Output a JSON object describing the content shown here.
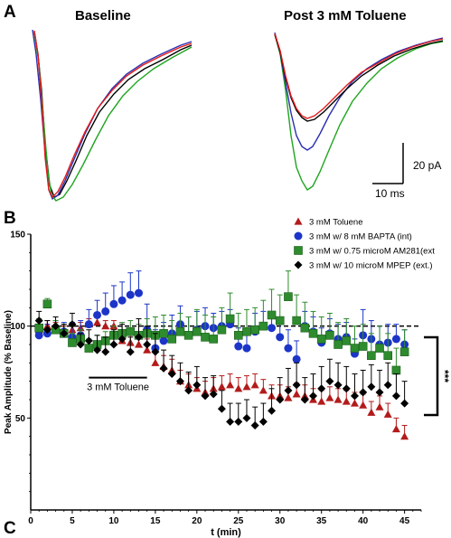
{
  "panels": {
    "a": "A",
    "b": "B",
    "c": "C"
  },
  "traces_panel": {
    "baseline_title": "Baseline",
    "post_title": "Post 3 mM Toluene",
    "scale_amp": "20 pA",
    "scale_time": "10 ms",
    "trace_colors": {
      "red": "#e31a1c",
      "blue": "#2b2fb0",
      "green": "#1fa51f",
      "black": "#000000"
    }
  },
  "significance": "***",
  "chart_data": {
    "type": "scatter",
    "title": "",
    "xlabel": "t (min)",
    "ylabel": "Peak Amplitude (% Baseline)",
    "xlim": [
      0,
      47
    ],
    "ylim": [
      0,
      150
    ],
    "xticks": [
      0,
      5,
      10,
      15,
      20,
      25,
      30,
      35,
      40,
      45
    ],
    "yticks": [
      50,
      100,
      150
    ],
    "reference_line": 100,
    "annotation": {
      "label": "3 mM Toluene",
      "x_start": 7,
      "x_end": 14
    },
    "legend_position": "top-right",
    "grid": false,
    "series": [
      {
        "name": "3 mM Toluene",
        "marker": "triangle",
        "color": "#b31b1b",
        "x": [
          1,
          2,
          3,
          4,
          5,
          6,
          7,
          8,
          9,
          10,
          11,
          12,
          13,
          14,
          15,
          16,
          17,
          18,
          19,
          20,
          21,
          22,
          23,
          24,
          25,
          26,
          27,
          28,
          29,
          30,
          31,
          32,
          33,
          34,
          35,
          36,
          37,
          38,
          39,
          40,
          41,
          42,
          43,
          44,
          45
        ],
        "y": [
          98,
          100,
          99,
          97,
          98,
          99,
          101,
          102,
          100,
          100,
          92,
          91,
          90,
          87,
          80,
          78,
          76,
          70,
          68,
          66,
          64,
          66,
          67,
          68,
          66,
          67,
          68,
          65,
          62,
          62,
          61,
          63,
          62,
          60,
          59,
          61,
          60,
          59,
          58,
          57,
          53,
          56,
          52,
          44,
          40
        ],
        "err": [
          3,
          3,
          3,
          3,
          3,
          3,
          3,
          3,
          3,
          3,
          6,
          6,
          6,
          6,
          6,
          6,
          6,
          6,
          6,
          6,
          6,
          6,
          6,
          6,
          6,
          6,
          6,
          6,
          6,
          6,
          6,
          6,
          6,
          6,
          6,
          6,
          6,
          6,
          6,
          6,
          6,
          6,
          6,
          6,
          6
        ]
      },
      {
        "name": "3 mM w/ 8 mM BAPTA (int)",
        "marker": "circle",
        "color": "#1c35c8",
        "x": [
          1,
          2,
          3,
          4,
          5,
          6,
          7,
          8,
          9,
          10,
          11,
          12,
          13,
          14,
          15,
          16,
          17,
          18,
          19,
          20,
          21,
          22,
          23,
          24,
          25,
          26,
          27,
          28,
          29,
          30,
          31,
          32,
          33,
          34,
          35,
          36,
          37,
          38,
          39,
          40,
          41,
          42,
          43,
          44,
          45
        ],
        "y": [
          95,
          96,
          98,
          97,
          94,
          95,
          101,
          106,
          108,
          112,
          114,
          117,
          118,
          98,
          88,
          92,
          96,
          101,
          95,
          98,
          100,
          99,
          100,
          101,
          89,
          88,
          97,
          100,
          99,
          94,
          88,
          82,
          100,
          97,
          91,
          96,
          93,
          94,
          85,
          95,
          93,
          90,
          91,
          93,
          90
        ],
        "err": [
          5,
          5,
          5,
          5,
          8,
          8,
          8,
          8,
          10,
          10,
          10,
          12,
          12,
          14,
          10,
          10,
          10,
          10,
          10,
          10,
          10,
          8,
          8,
          8,
          10,
          10,
          10,
          8,
          8,
          10,
          10,
          10,
          8,
          8,
          8,
          8,
          8,
          8,
          8,
          14,
          10,
          10,
          10,
          8,
          8
        ]
      },
      {
        "name": "3 mM w/ 0.75 microM AM281(ext",
        "marker": "square",
        "color": "#2e8b2e",
        "x": [
          1,
          2,
          3,
          4,
          5,
          6,
          7,
          8,
          9,
          10,
          11,
          12,
          13,
          14,
          15,
          16,
          17,
          18,
          19,
          20,
          21,
          22,
          23,
          24,
          25,
          26,
          27,
          28,
          29,
          30,
          31,
          32,
          33,
          34,
          35,
          36,
          37,
          38,
          39,
          40,
          41,
          42,
          43,
          44,
          45
        ],
        "y": [
          99,
          112,
          98,
          96,
          91,
          93,
          88,
          90,
          92,
          95,
          96,
          97,
          95,
          96,
          95,
          96,
          93,
          97,
          95,
          97,
          94,
          93,
          98,
          104,
          95,
          97,
          98,
          100,
          106,
          103,
          116,
          103,
          99,
          96,
          93,
          95,
          90,
          92,
          88,
          89,
          84,
          88,
          84,
          76,
          86
        ],
        "err": [
          5,
          3,
          5,
          5,
          5,
          5,
          5,
          5,
          5,
          5,
          6,
          6,
          6,
          8,
          10,
          10,
          10,
          10,
          10,
          12,
          12,
          12,
          12,
          14,
          12,
          12,
          12,
          14,
          14,
          14,
          14,
          14,
          14,
          12,
          12,
          12,
          12,
          12,
          12,
          12,
          12,
          12,
          12,
          12,
          12
        ]
      },
      {
        "name": "3 mM w/ 10 microM MPEP (ext.)",
        "marker": "diamond",
        "color": "#000000",
        "x": [
          1,
          2,
          3,
          4,
          5,
          6,
          7,
          8,
          9,
          10,
          11,
          12,
          13,
          14,
          15,
          16,
          17,
          18,
          19,
          20,
          21,
          22,
          23,
          24,
          25,
          26,
          27,
          28,
          29,
          30,
          31,
          32,
          33,
          34,
          35,
          36,
          37,
          38,
          39,
          40,
          41,
          42,
          43,
          44,
          45
        ],
        "y": [
          103,
          98,
          100,
          96,
          101,
          90,
          92,
          87,
          86,
          90,
          93,
          86,
          94,
          90,
          86,
          77,
          74,
          70,
          65,
          68,
          62,
          63,
          55,
          48,
          48,
          50,
          46,
          48,
          54,
          60,
          65,
          68,
          60,
          62,
          66,
          70,
          68,
          66,
          62,
          64,
          67,
          64,
          68,
          62,
          58
        ],
        "err": [
          5,
          5,
          5,
          5,
          6,
          6,
          6,
          8,
          8,
          8,
          8,
          8,
          10,
          10,
          10,
          10,
          10,
          10,
          10,
          10,
          10,
          10,
          10,
          10,
          10,
          10,
          10,
          10,
          12,
          12,
          12,
          12,
          12,
          12,
          12,
          12,
          12,
          12,
          12,
          12,
          12,
          12,
          12,
          12,
          12
        ]
      }
    ]
  }
}
